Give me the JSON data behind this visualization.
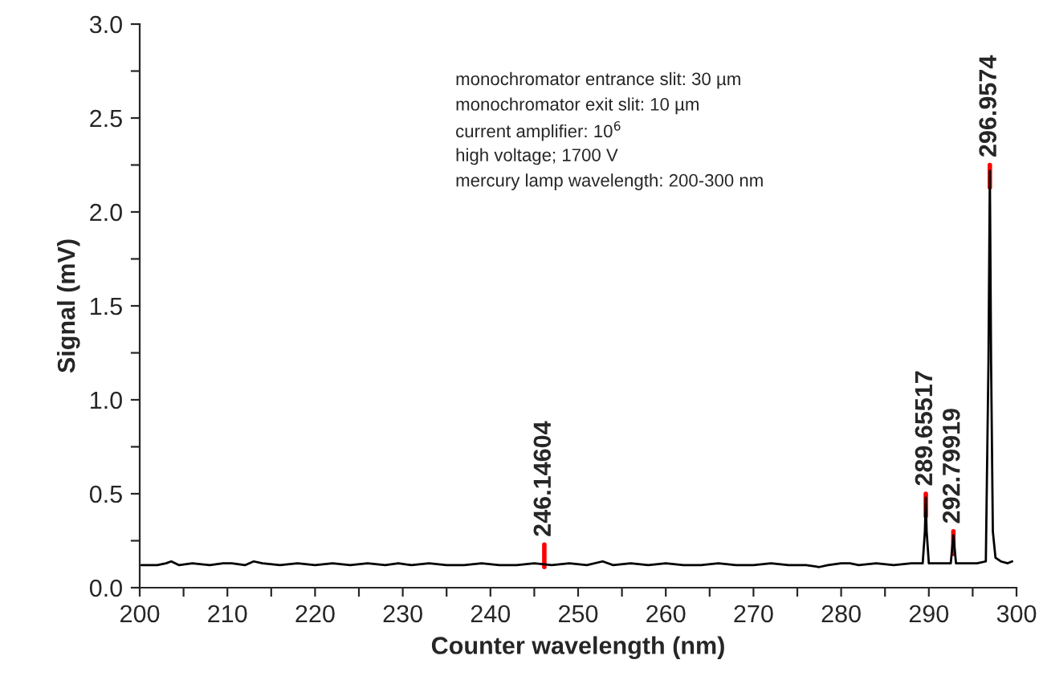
{
  "chart_data": {
    "type": "line",
    "xlabel": "Counter wavelength (nm)",
    "ylabel": "Signal (mV)",
    "xlim": [
      200,
      300
    ],
    "ylim": [
      0.0,
      3.0
    ],
    "xticks": [
      200,
      {
        "value": 205,
        "label": null
      },
      210,
      {
        "value": 215,
        "label": null
      },
      220,
      {
        "value": 225,
        "label": null
      },
      230,
      {
        "value": 235,
        "label": null
      },
      240,
      {
        "value": 245,
        "label": null
      },
      250,
      {
        "value": 255,
        "label": null
      },
      260,
      {
        "value": 265,
        "label": null
      },
      270,
      {
        "value": 275,
        "label": null
      },
      280,
      {
        "value": 285,
        "label": null
      },
      290,
      {
        "value": 295,
        "label": null
      },
      300
    ],
    "yticks": [
      {
        "value": 0.0,
        "label": "0.0"
      },
      {
        "value": 0.25,
        "label": null
      },
      0.5,
      {
        "value": 0.75,
        "label": null
      },
      {
        "value": 1.0,
        "label": "1.0"
      },
      {
        "value": 1.25,
        "label": null
      },
      1.5,
      {
        "value": 1.75,
        "label": null
      },
      {
        "value": 2.0,
        "label": "2.0"
      },
      {
        "value": 2.25,
        "label": null
      },
      2.5,
      {
        "value": 2.75,
        "label": null
      },
      {
        "value": 3.0,
        "label": "3.0"
      }
    ],
    "grid": false,
    "legend": false,
    "marker": "none",
    "line_style": "solid",
    "series": [
      {
        "color": "#000000",
        "x": [
          200.2,
          202,
          203,
          203.6,
          204.5,
          206,
          208,
          209.5,
          210.5,
          212,
          213,
          214,
          216,
          218,
          220,
          222,
          224,
          226,
          228,
          229.5,
          231,
          233,
          235,
          237,
          239,
          241,
          243,
          245,
          247,
          249,
          251,
          252.8,
          254,
          256,
          258,
          260,
          262,
          264,
          266,
          268,
          270,
          272,
          274,
          276,
          277.5,
          278.5,
          280,
          281,
          282,
          284,
          286,
          288,
          289.3,
          289.55,
          289.65,
          289.75,
          290.0,
          291,
          292.5,
          292.8,
          293.1,
          294,
          295.5,
          296.5,
          296.8,
          296.96,
          297.1,
          297.3,
          297.6,
          298.2,
          299,
          299.5
        ],
        "values": [
          0.12,
          0.12,
          0.13,
          0.14,
          0.12,
          0.13,
          0.12,
          0.13,
          0.13,
          0.12,
          0.14,
          0.13,
          0.12,
          0.13,
          0.12,
          0.13,
          0.12,
          0.13,
          0.12,
          0.13,
          0.12,
          0.13,
          0.12,
          0.12,
          0.13,
          0.12,
          0.12,
          0.13,
          0.12,
          0.13,
          0.12,
          0.14,
          0.12,
          0.13,
          0.12,
          0.13,
          0.12,
          0.12,
          0.13,
          0.12,
          0.12,
          0.13,
          0.12,
          0.12,
          0.11,
          0.12,
          0.13,
          0.13,
          0.12,
          0.13,
          0.12,
          0.13,
          0.13,
          0.3,
          0.48,
          0.3,
          0.13,
          0.13,
          0.13,
          0.28,
          0.13,
          0.13,
          0.13,
          0.14,
          1.2,
          2.22,
          1.2,
          0.3,
          0.16,
          0.14,
          0.13,
          0.14
        ]
      }
    ],
    "annotations": [
      {
        "text": "246.14604",
        "x": 246.14604,
        "y": 0.11
      },
      {
        "text": "289.65517",
        "x": 289.65517,
        "y": 0.38
      },
      {
        "text": "292.79919",
        "x": 292.79919,
        "y": 0.18
      },
      {
        "text": "296.9574",
        "x": 296.9574,
        "y": 2.13
      },
      "monochromator entrance slit: 30 µm",
      "monochromator exit slit: 10 µm",
      "current amplifier: 10$^{6}$",
      "high voltage; 1700 V",
      "mercury lamp wavelength: 200-300 nm"
    ]
  }
}
